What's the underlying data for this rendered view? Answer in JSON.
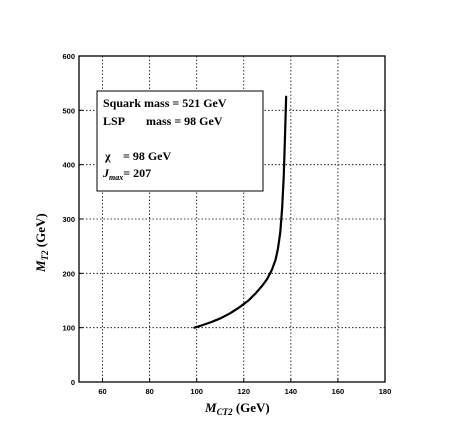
{
  "chart_data": {
    "type": "line",
    "title": "",
    "xlabel": {
      "main": "M",
      "sub": "CT2",
      "unit": " (GeV)"
    },
    "ylabel": {
      "main": "M",
      "sub": "T2",
      "unit": " (GeV)"
    },
    "xlim": [
      50,
      180
    ],
    "ylim": [
      0,
      600
    ],
    "xticks": [
      60,
      80,
      100,
      120,
      140,
      160,
      180
    ],
    "yticks": [
      0,
      100,
      200,
      300,
      400,
      500,
      600
    ],
    "grid": true,
    "series": [
      {
        "x": [
          99,
          102,
          106,
          110,
          114,
          118,
          122,
          125,
          128,
          130,
          132,
          133.5,
          134.5,
          135.5,
          136.3,
          137,
          137.5,
          138
        ],
        "y": [
          100,
          104,
          110,
          117,
          126,
          137,
          150,
          163,
          178,
          190,
          207,
          225,
          245,
          275,
          320,
          380,
          450,
          525
        ]
      }
    ],
    "annotation": {
      "line1": "Squark mass = 521 GeV",
      "line2_a": "LSP",
      "line2_b": "mass = 98  GeV",
      "line3_sym": "χ",
      "line3_val": "= 98 GeV",
      "line4_main": "J",
      "line4_sub": "max",
      "line4_val": "= 207"
    }
  }
}
